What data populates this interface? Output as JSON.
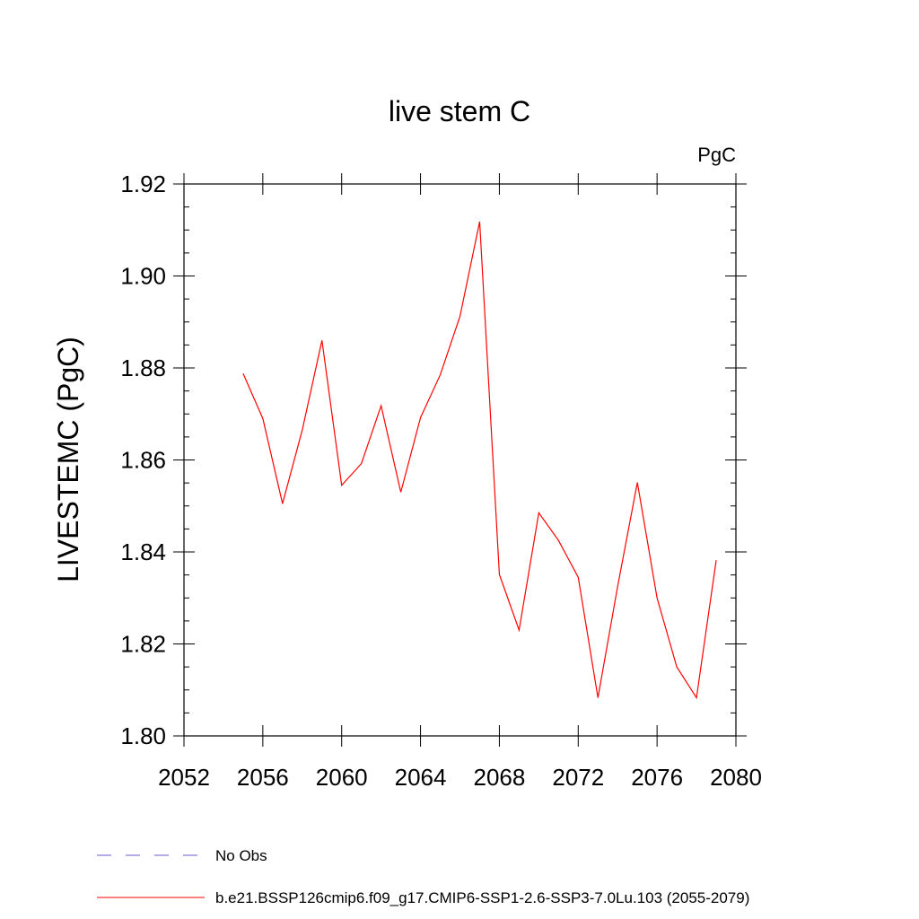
{
  "chart_data": {
    "type": "line",
    "title": "live stem C",
    "units": "PgC",
    "ylabel": "LIVESTEMC  (PgC)",
    "xlabel": "",
    "xlim": [
      2052,
      2080
    ],
    "ylim": [
      1.8,
      1.92
    ],
    "x_ticks": [
      "2052",
      "2056",
      "2060",
      "2064",
      "2068",
      "2072",
      "2076",
      "2080"
    ],
    "y_ticks": [
      "1.80",
      "1.82",
      "1.84",
      "1.86",
      "1.88",
      "1.90",
      "1.92"
    ],
    "grid": false,
    "legend_position": "bottom",
    "series": [
      {
        "name": "No Obs",
        "color": "#6a5acd",
        "dash": "dashed",
        "x": [],
        "y": []
      },
      {
        "name": "b.e21.BSSP126cmip6.f09_g17.CMIP6-SSP1-2.6-SSP3-7.0Lu.103 (2055-2079)",
        "color": "#ff0000",
        "dash": "solid",
        "x": [
          2055,
          2056,
          2057,
          2058,
          2059,
          2060,
          2061,
          2062,
          2063,
          2064,
          2065,
          2066,
          2067,
          2068,
          2069,
          2070,
          2071,
          2072,
          2073,
          2074,
          2075,
          2076,
          2077,
          2078,
          2079
        ],
        "y": [
          1.8788,
          1.869,
          1.8505,
          1.8665,
          1.886,
          1.8545,
          1.8592,
          1.8718,
          1.853,
          1.8692,
          1.8785,
          1.8912,
          1.9118,
          1.8351,
          1.823,
          1.8485,
          1.8425,
          1.8345,
          1.8083,
          1.8325,
          1.8551,
          1.83,
          1.815,
          1.8083,
          1.8382
        ]
      }
    ]
  }
}
